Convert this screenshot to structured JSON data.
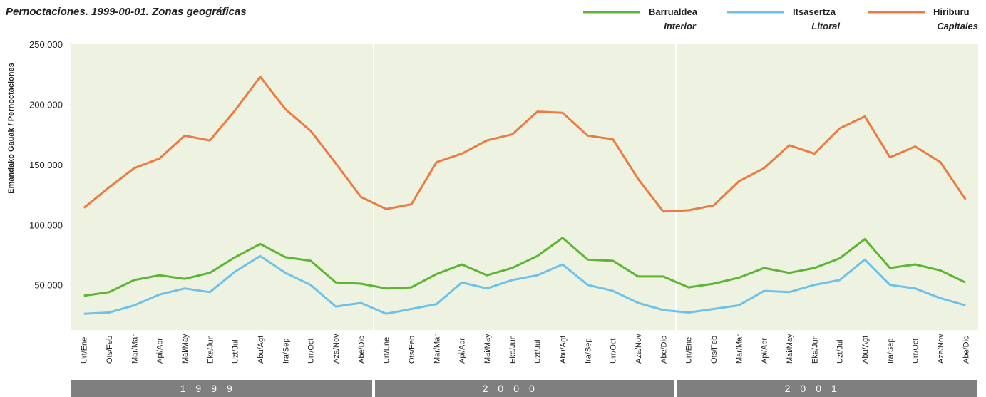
{
  "chart_data": {
    "type": "line",
    "title": "Pernoctaciones. 1999-00-01. Zonas geográficas",
    "y_label": "Emandako Gauak / Pernoctaciones",
    "categories": [
      "Urt/Ene",
      "Ots/Feb",
      "Mar/Mar",
      "Api/Abr",
      "Mai/May",
      "Eka/Jun",
      "Uzt/Jul",
      "Abu/Agt",
      "Ira/Sep",
      "Urr/Oct",
      "Aza/Nov",
      "Abe/Dic",
      "Urt/Ene",
      "Ots/Feb",
      "Mar/Mar",
      "Api/Abr",
      "Mai/May",
      "Eka/Jun",
      "Uzt/Jul",
      "Abu/Agt",
      "Ira/Sep",
      "Urr/Oct",
      "Aza/Nov",
      "Abe/Dic",
      "Urt/Ene",
      "Ots/Feb",
      "Mar/Mar",
      "Api/Abr",
      "Mai/May",
      "Eka/Jun",
      "Uzt/Jul",
      "Abu/Agt",
      "Ira/Sep",
      "Urr/Oct",
      "Aza/Nov",
      "Abe/Dic"
    ],
    "x_groups": [
      "1999",
      "2000",
      "2001"
    ],
    "ylim": [
      12500,
      250000
    ],
    "yticks": [
      {
        "value": 50000,
        "label": "50.000"
      },
      {
        "value": 100000,
        "label": "100.000"
      },
      {
        "value": 150000,
        "label": "150.000"
      },
      {
        "value": 200000,
        "label": "200.000"
      },
      {
        "value": 250000,
        "label": "250.000"
      }
    ],
    "series": [
      {
        "name": "Barrualdea",
        "subname": "Interior",
        "color": "#5db534",
        "values": [
          41000,
          44000,
          54000,
          58000,
          55000,
          60000,
          73000,
          84000,
          73000,
          70000,
          52000,
          51000,
          47000,
          48000,
          59000,
          67000,
          58000,
          64000,
          74000,
          89000,
          71000,
          70000,
          57000,
          57000,
          48000,
          51000,
          56000,
          64000,
          60000,
          64000,
          72000,
          88000,
          64000,
          67000,
          62000,
          52000
        ]
      },
      {
        "name": "Itsasertza",
        "subname": "Litoral",
        "color": "#6ec1e8",
        "values": [
          26000,
          27000,
          33000,
          42000,
          47000,
          44000,
          61000,
          74000,
          60000,
          50000,
          32000,
          35000,
          26000,
          30000,
          34000,
          52000,
          47000,
          54000,
          58000,
          67000,
          50000,
          45000,
          35000,
          29000,
          27000,
          30000,
          33000,
          45000,
          44000,
          50000,
          54000,
          71000,
          50000,
          47000,
          39000,
          33000
        ]
      },
      {
        "name": "Hiriburu",
        "subname": "Capitales",
        "color": "#ec7b43",
        "values": [
          114000,
          131000,
          147000,
          155000,
          174000,
          170000,
          195000,
          223000,
          196000,
          178000,
          151000,
          123000,
          113000,
          117000,
          152000,
          159000,
          170000,
          175000,
          194000,
          193000,
          174000,
          171000,
          138000,
          111000,
          112000,
          116000,
          136000,
          147000,
          166000,
          159000,
          180000,
          190000,
          156000,
          165000,
          152000,
          121000
        ]
      }
    ]
  }
}
